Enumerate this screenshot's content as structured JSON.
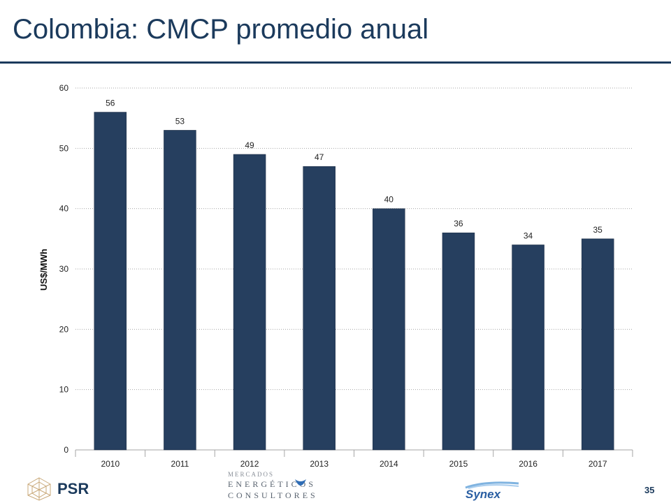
{
  "slide": {
    "title": "Colombia: CMCP promedio anual",
    "page_number": "35"
  },
  "footer": {
    "psr_label": "PSR",
    "mec_line1": "MERCADOS",
    "mec_line2": "ENERGÉTICOS",
    "mec_line3": "CONSULTORES",
    "synex_label": "Synex"
  },
  "colors": {
    "bar": "#263f5f",
    "title": "#1b3a5c",
    "grid": "#a6a6a6"
  },
  "chart_data": {
    "type": "bar",
    "categories": [
      "2010",
      "2011",
      "2012",
      "2013",
      "2014",
      "2015",
      "2016",
      "2017"
    ],
    "values": [
      56,
      53,
      49,
      47,
      40,
      36,
      34,
      35
    ],
    "data_labels": [
      "56",
      "53",
      "49",
      "47",
      "40",
      "36",
      "34",
      "35"
    ],
    "ylabel": "US$/MWh",
    "ylim": [
      0,
      60
    ],
    "yticks": [
      0,
      10,
      20,
      30,
      40,
      50,
      60
    ],
    "ytick_labels": [
      "0",
      "10",
      "20",
      "30",
      "40",
      "50",
      "60"
    ],
    "grid": true,
    "grid_style": "dotted"
  }
}
